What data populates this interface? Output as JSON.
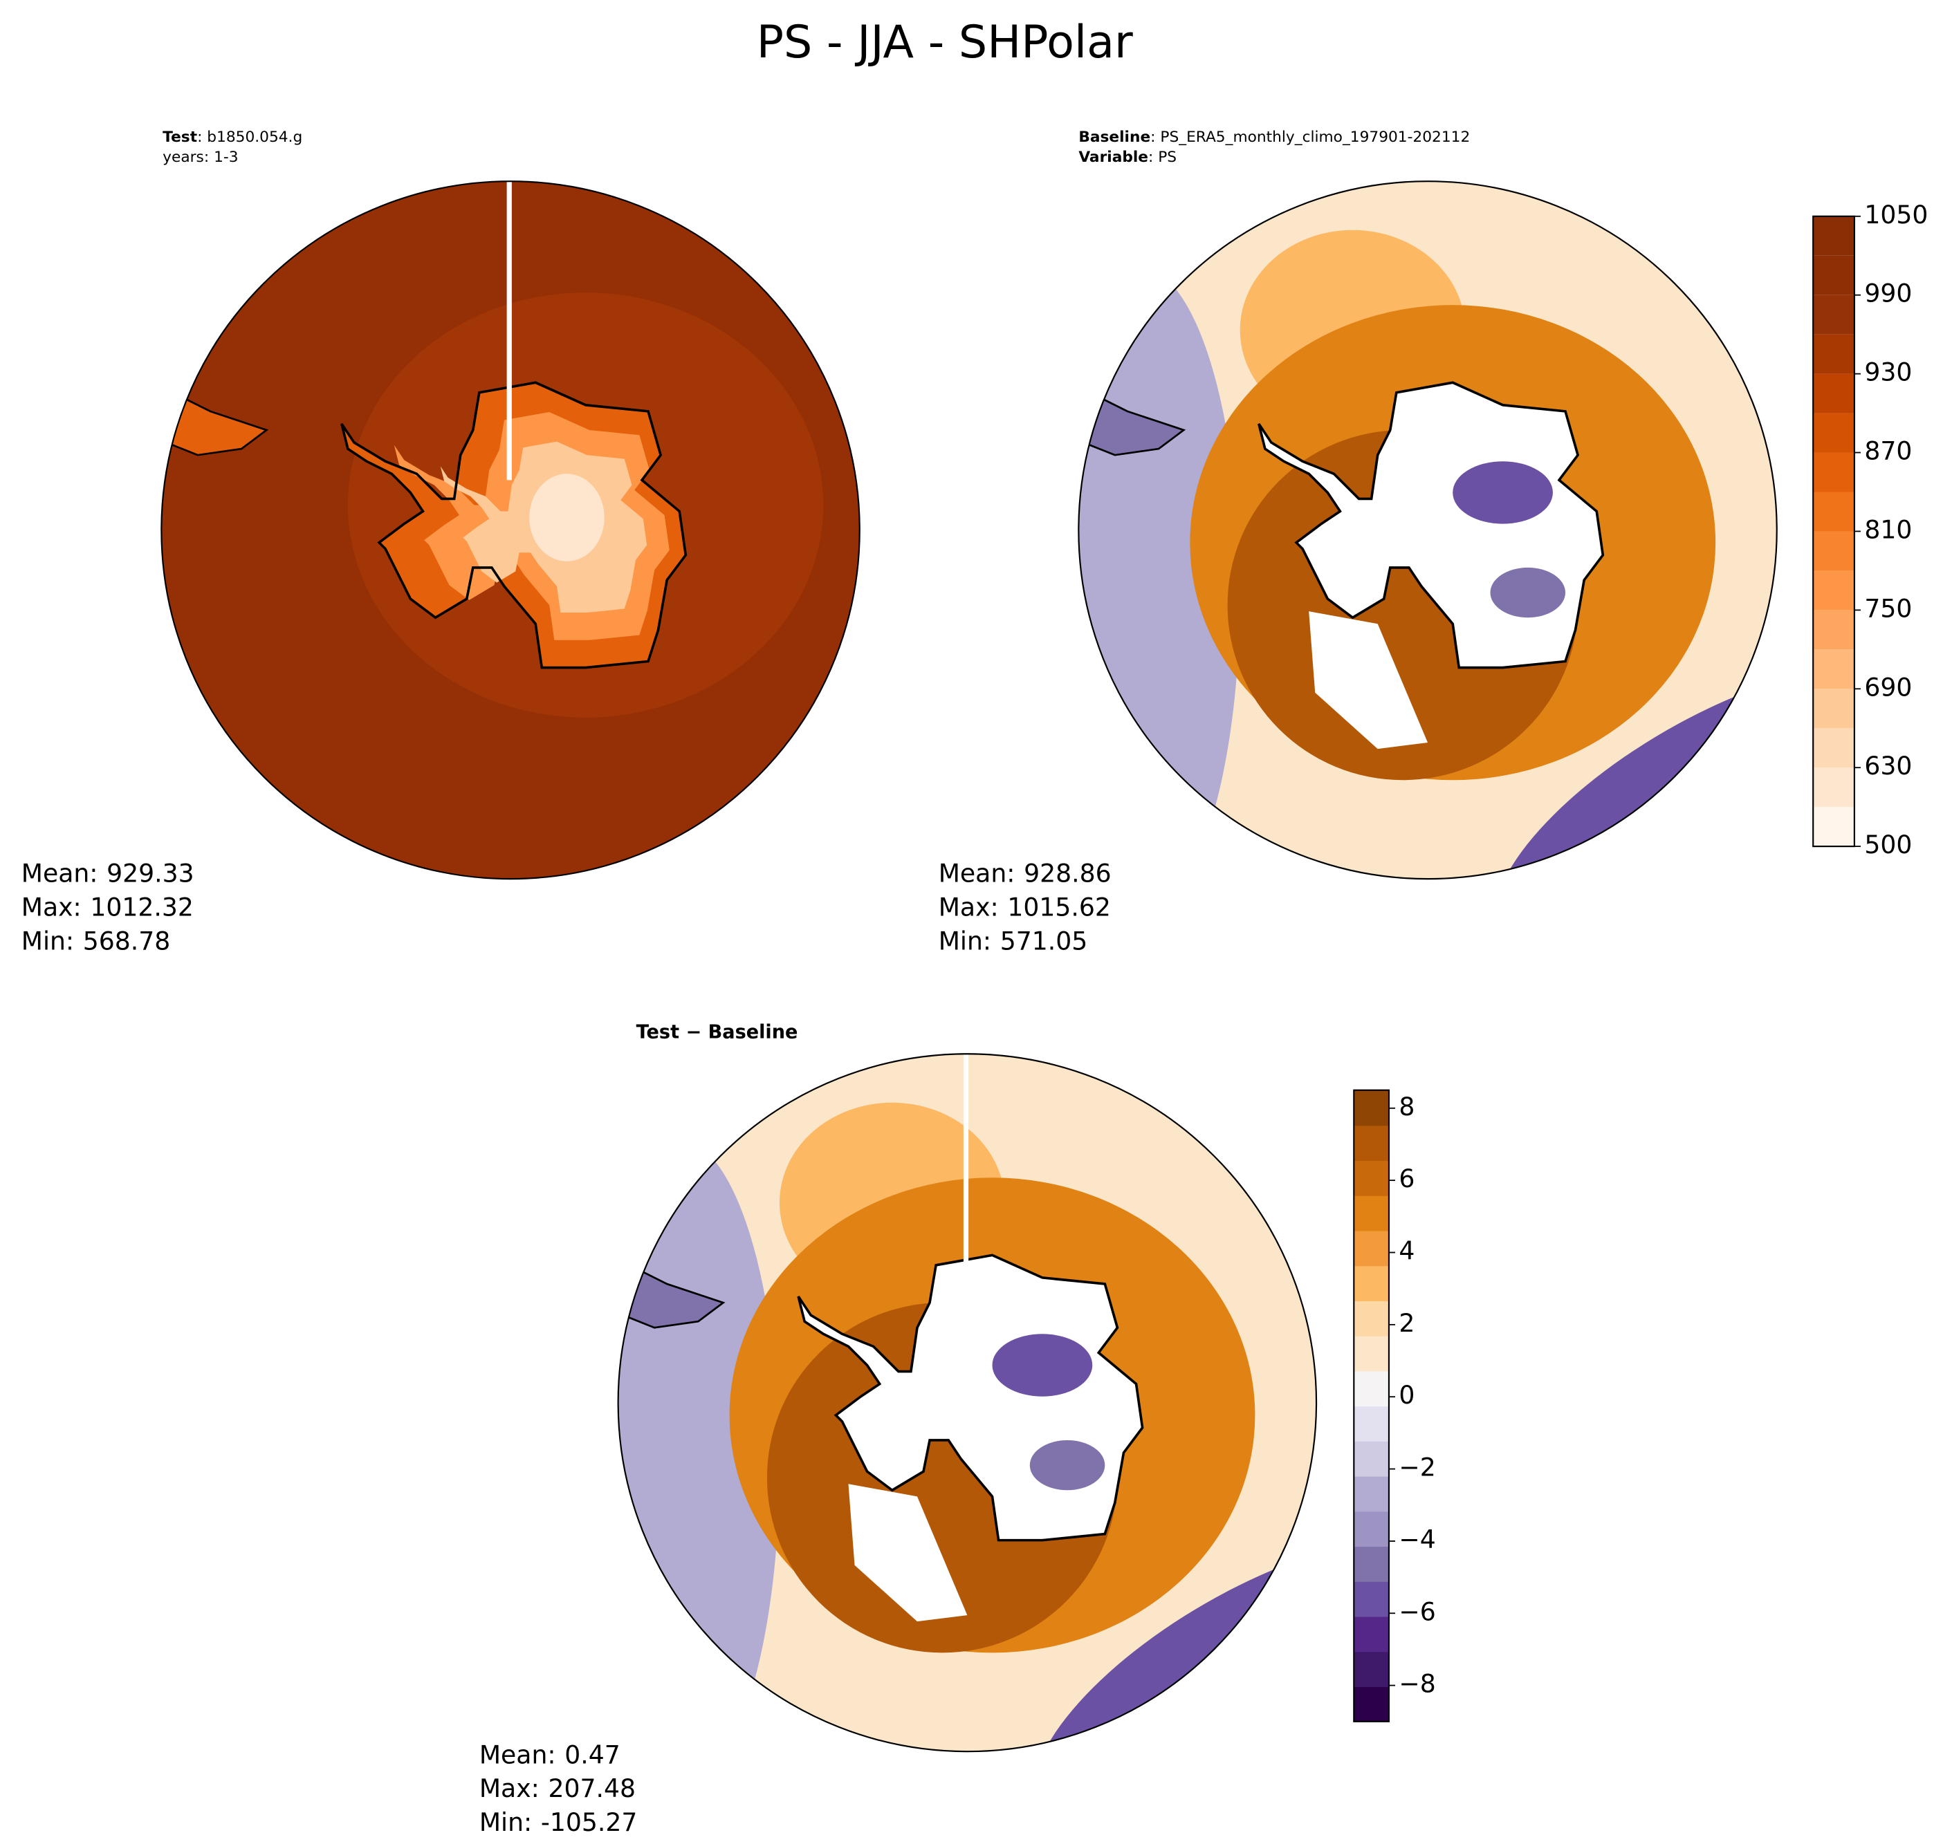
{
  "title": "PS - JJA - SHPolar",
  "panels": [
    {
      "header": [
        {
          "label": "Test",
          "text": ": b1850.054.g"
        },
        {
          "text": "years: 1-3"
        }
      ],
      "stats": [
        {
          "label": "Mean:",
          "value": 929.33
        },
        {
          "label": "Max:",
          "value": 1012.32
        },
        {
          "label": "Min:",
          "value": 568.78
        }
      ]
    },
    {
      "header": [
        {
          "label": "Baseline",
          "text": ": PS_ERA5_monthly_climo_197901-202112"
        },
        {
          "label": "Variable",
          "text": ": PS"
        }
      ],
      "stats": [
        {
          "label": "Mean:",
          "value": 928.86
        },
        {
          "label": "Max:",
          "value": 1015.62
        },
        {
          "label": "Min:",
          "value": 571.05
        }
      ]
    },
    {
      "header": [
        {
          "label": "Test − Baseline"
        }
      ],
      "stats": [
        {
          "label": "Mean:",
          "value": 0.47
        },
        {
          "label": "Max:",
          "value": 207.48
        },
        {
          "label": "Min:",
          "value": -105.27
        }
      ]
    }
  ],
  "colorbars": [
    {
      "levels": [
        500,
        600,
        630,
        660,
        690,
        720,
        750,
        780,
        810,
        840,
        870,
        900,
        930,
        960,
        990,
        1020,
        1050
      ],
      "ticks": [
        500,
        630,
        690,
        750,
        810,
        870,
        930,
        990,
        1050
      ],
      "colors": [
        "#fff5eb",
        "#fee6ce",
        "#fdd9b5",
        "#fdc997",
        "#fdb87a",
        "#fda660",
        "#fd9647",
        "#f8842f",
        "#f07219",
        "#e5600b",
        "#d45203",
        "#c04302",
        "#a83903",
        "#963207",
        "#8f2f06",
        "#8a2e05"
      ]
    },
    {
      "lim": [
        -9,
        8.5
      ],
      "ticks": [
        {
          "value": -8,
          "label": "−8"
        },
        {
          "value": -6,
          "label": "−6"
        },
        {
          "value": -4,
          "label": "−4"
        },
        {
          "value": -2,
          "label": "−2"
        },
        0,
        2,
        4,
        6,
        8
      ],
      "colors": [
        "#2d004b",
        "#3f1a6b",
        "#542788",
        "#6a51a3",
        "#8073ac",
        "#9d94c3",
        "#b2abd2",
        "#cfcbe3",
        "#e3e1ef",
        "#f5f3f3",
        "#fbe6c9",
        "#fdd7a6",
        "#fdb863",
        "#f29a3c",
        "#e08214",
        "#c86a0c",
        "#b35806",
        "#8f4604"
      ]
    }
  ]
}
